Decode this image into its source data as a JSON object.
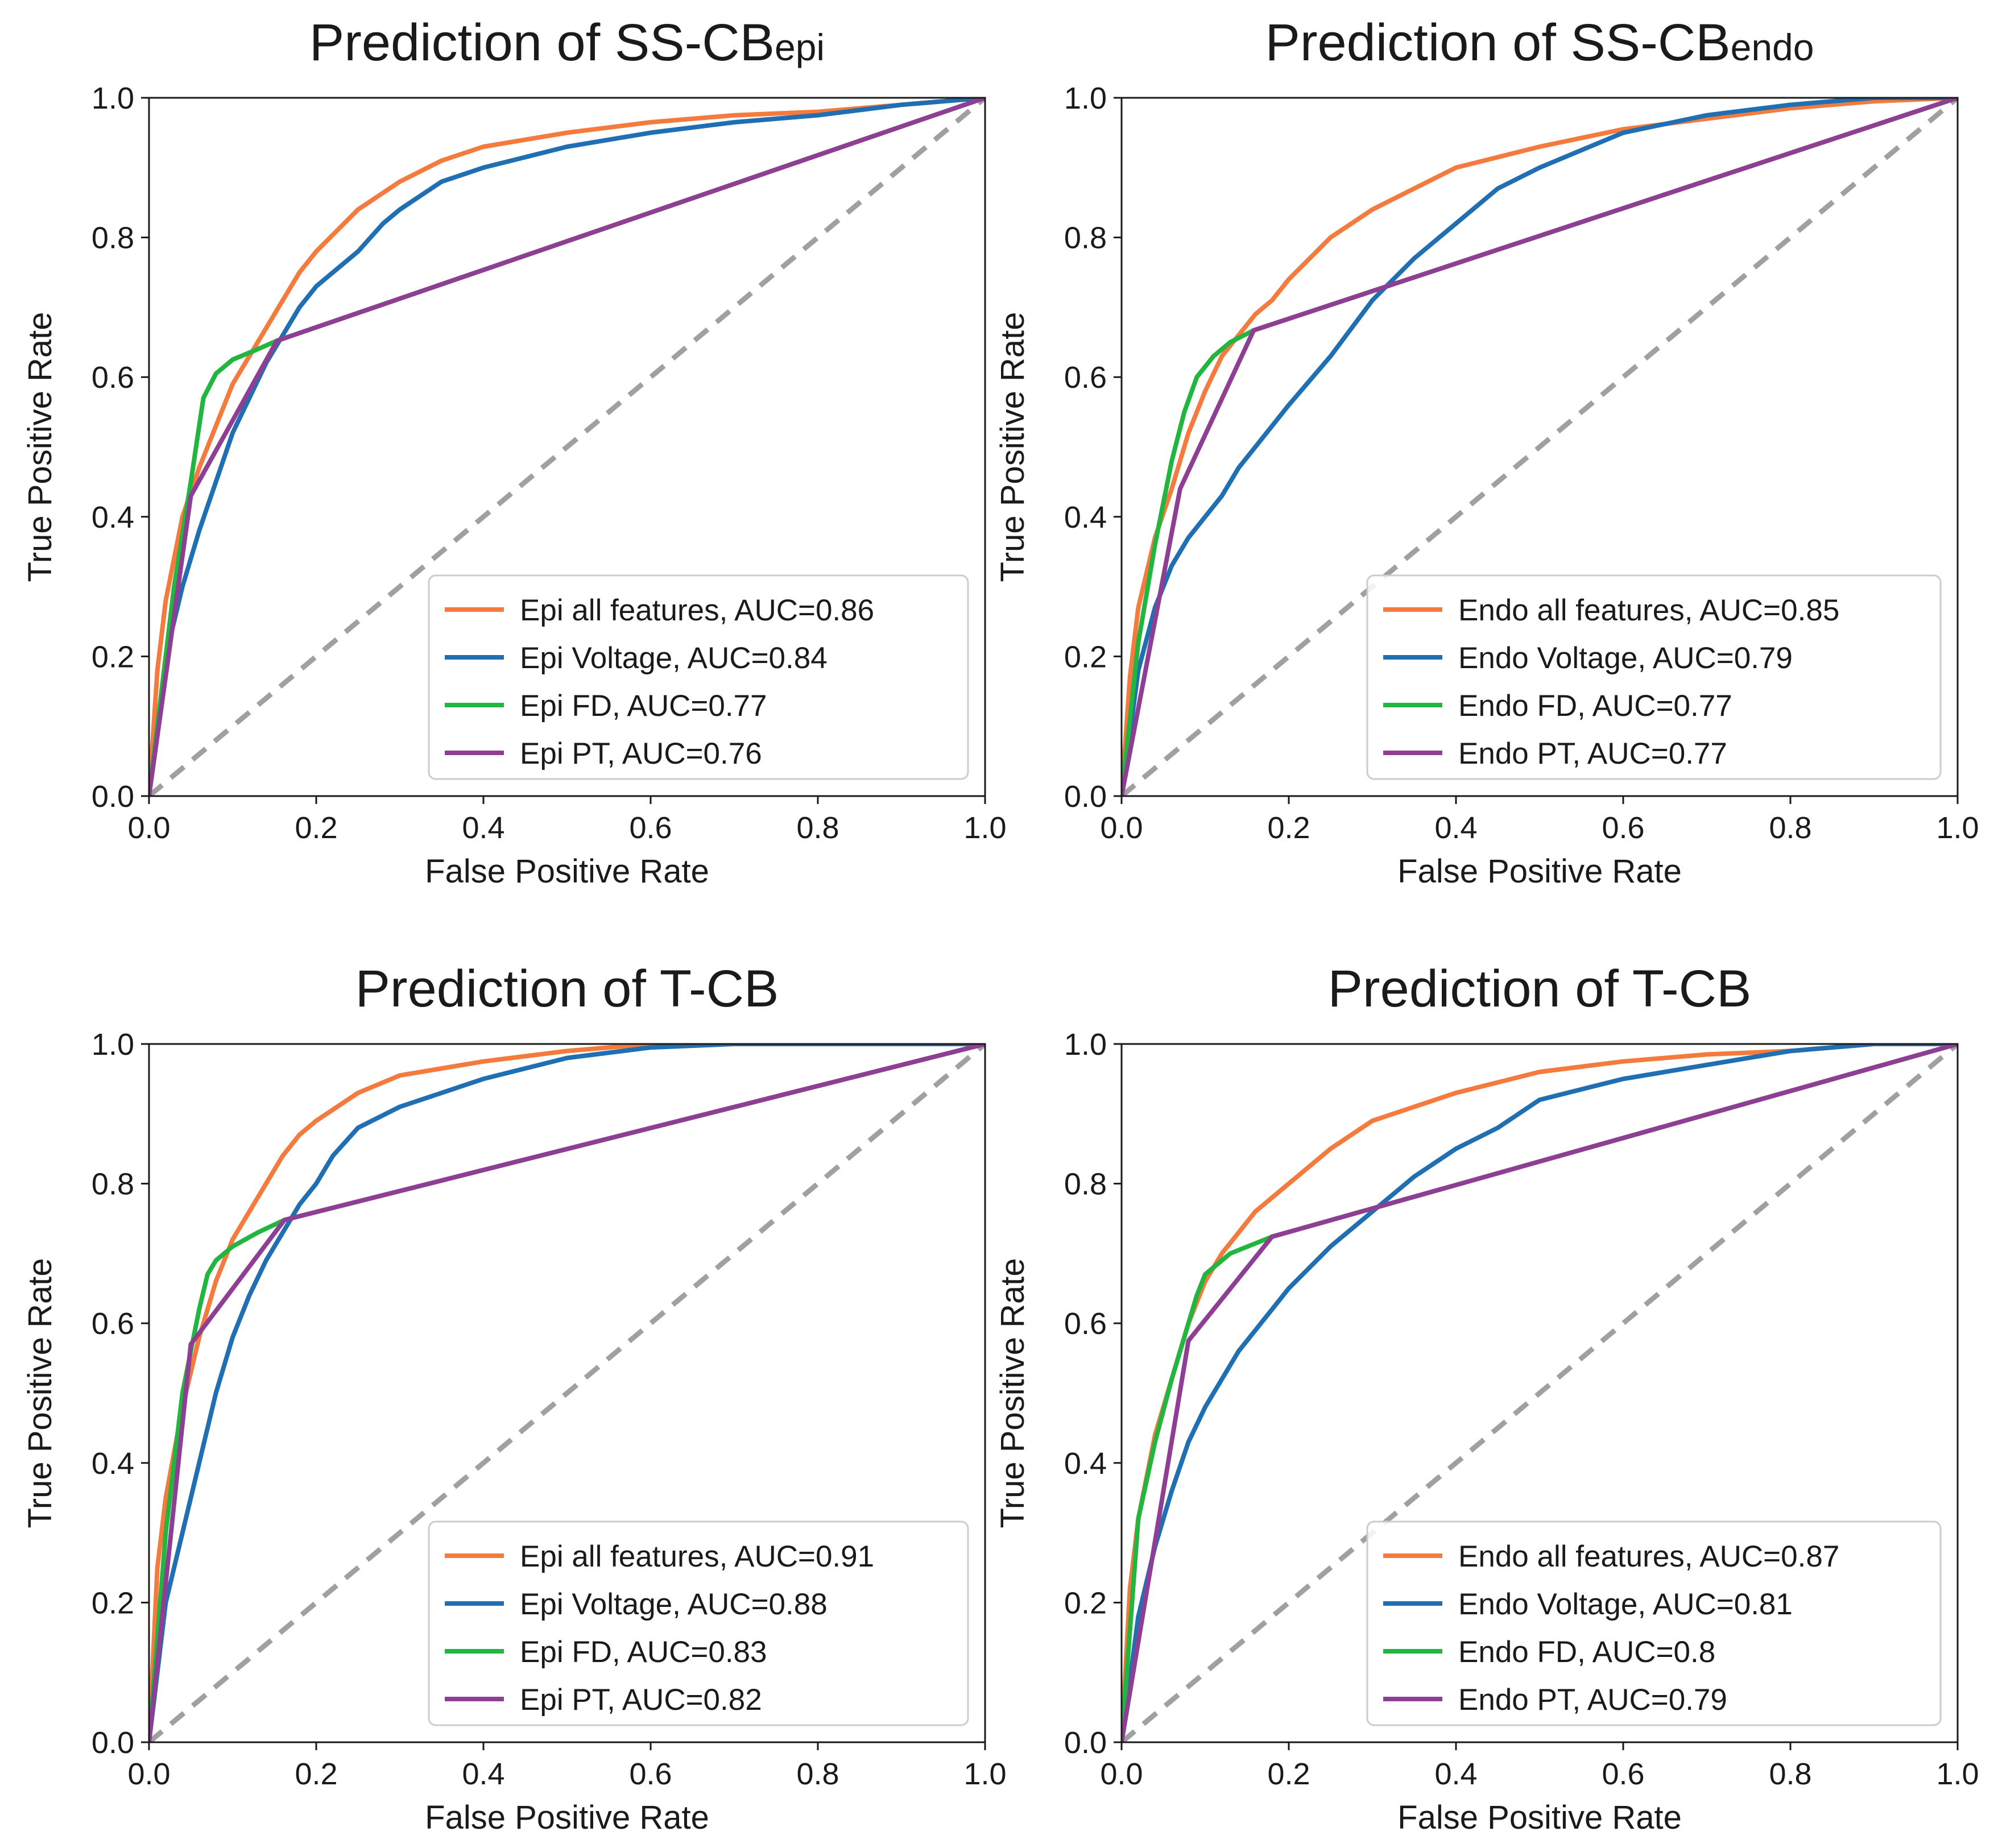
{
  "chart_data": [
    {
      "type": "line",
      "title": "Prediction of SS-CB",
      "title_sub": "epi",
      "xlabel": "False Positive Rate",
      "ylabel": "True Positive Rate",
      "xlim": [
        0,
        1
      ],
      "ylim": [
        0,
        1
      ],
      "xticks": [
        "0.0",
        "0.2",
        "0.4",
        "0.6",
        "0.8",
        "1.0"
      ],
      "yticks": [
        "0.0",
        "0.2",
        "0.4",
        "0.6",
        "0.8",
        "1.0"
      ],
      "grid": false,
      "legend_position": "lower-right",
      "diagonal": {
        "x": [
          0,
          1
        ],
        "y": [
          0,
          1
        ],
        "color": "#a0a0a0",
        "style": "dashed"
      },
      "series": [
        {
          "name": "Epi all features, AUC=0.86",
          "color": "#f47a3e",
          "x": [
            0,
            0.01,
            0.02,
            0.04,
            0.06,
            0.08,
            0.1,
            0.12,
            0.14,
            0.16,
            0.18,
            0.2,
            0.25,
            0.3,
            0.35,
            0.4,
            0.5,
            0.6,
            0.7,
            0.8,
            0.9,
            1.0
          ],
          "y": [
            0,
            0.18,
            0.28,
            0.4,
            0.47,
            0.53,
            0.59,
            0.63,
            0.67,
            0.71,
            0.75,
            0.78,
            0.84,
            0.88,
            0.91,
            0.93,
            0.95,
            0.965,
            0.975,
            0.98,
            0.99,
            1.0
          ]
        },
        {
          "name": "Epi Voltage, AUC=0.84",
          "color": "#1f6fb2",
          "x": [
            0,
            0.02,
            0.04,
            0.06,
            0.08,
            0.1,
            0.12,
            0.14,
            0.16,
            0.18,
            0.2,
            0.22,
            0.25,
            0.28,
            0.3,
            0.35,
            0.4,
            0.5,
            0.6,
            0.7,
            0.8,
            0.9,
            1.0
          ],
          "y": [
            0,
            0.2,
            0.3,
            0.38,
            0.45,
            0.52,
            0.57,
            0.62,
            0.66,
            0.7,
            0.73,
            0.75,
            0.78,
            0.82,
            0.84,
            0.88,
            0.9,
            0.93,
            0.95,
            0.965,
            0.975,
            0.99,
            1.0
          ]
        },
        {
          "name": "Epi FD, AUC=0.77",
          "color": "#22b53f",
          "x": [
            0,
            0.03,
            0.05,
            0.06,
            0.065,
            0.08,
            0.1,
            0.13,
            0.153,
            1.0
          ],
          "y": [
            0,
            0.3,
            0.45,
            0.53,
            0.57,
            0.605,
            0.625,
            0.64,
            0.652,
            1.0
          ]
        },
        {
          "name": "Epi PT, AUC=0.76",
          "color": "#8e3e93",
          "x": [
            0,
            0.05,
            0.153,
            1.0
          ],
          "y": [
            0,
            0.43,
            0.652,
            1.0
          ]
        }
      ]
    },
    {
      "type": "line",
      "title": "Prediction of SS-CB",
      "title_sub": "endo",
      "xlabel": "False Positive Rate",
      "ylabel": "True Positive Rate",
      "xlim": [
        0,
        1
      ],
      "ylim": [
        0,
        1
      ],
      "xticks": [
        "0.0",
        "0.2",
        "0.4",
        "0.6",
        "0.8",
        "1.0"
      ],
      "yticks": [
        "0.0",
        "0.2",
        "0.4",
        "0.6",
        "0.8",
        "1.0"
      ],
      "grid": false,
      "legend_position": "lower-right",
      "diagonal": {
        "x": [
          0,
          1
        ],
        "y": [
          0,
          1
        ],
        "color": "#a0a0a0",
        "style": "dashed"
      },
      "series": [
        {
          "name": "Endo all features, AUC=0.85",
          "color": "#f47a3e",
          "x": [
            0,
            0.01,
            0.02,
            0.04,
            0.06,
            0.08,
            0.1,
            0.12,
            0.14,
            0.16,
            0.18,
            0.2,
            0.25,
            0.3,
            0.35,
            0.4,
            0.5,
            0.6,
            0.7,
            0.8,
            0.9,
            1.0
          ],
          "y": [
            0,
            0.17,
            0.27,
            0.37,
            0.44,
            0.52,
            0.58,
            0.63,
            0.66,
            0.69,
            0.71,
            0.74,
            0.8,
            0.84,
            0.87,
            0.9,
            0.93,
            0.955,
            0.97,
            0.985,
            0.995,
            1.0
          ]
        },
        {
          "name": "Endo Voltage, AUC=0.79",
          "color": "#1f6fb2",
          "x": [
            0,
            0.02,
            0.04,
            0.06,
            0.08,
            0.1,
            0.12,
            0.14,
            0.16,
            0.2,
            0.25,
            0.3,
            0.35,
            0.4,
            0.45,
            0.5,
            0.6,
            0.7,
            0.8,
            0.9,
            1.0
          ],
          "y": [
            0,
            0.18,
            0.27,
            0.33,
            0.37,
            0.4,
            0.43,
            0.47,
            0.5,
            0.56,
            0.63,
            0.71,
            0.77,
            0.82,
            0.87,
            0.9,
            0.95,
            0.975,
            0.99,
            1.0,
            1.0
          ]
        },
        {
          "name": "Endo FD, AUC=0.77",
          "color": "#22b53f",
          "x": [
            0,
            0.02,
            0.04,
            0.06,
            0.075,
            0.09,
            0.11,
            0.13,
            0.158,
            1.0
          ],
          "y": [
            0,
            0.22,
            0.36,
            0.48,
            0.55,
            0.6,
            0.63,
            0.65,
            0.667,
            1.0
          ]
        },
        {
          "name": "Endo PT, AUC=0.77",
          "color": "#8e3e93",
          "x": [
            0,
            0.07,
            0.158,
            1.0
          ],
          "y": [
            0,
            0.44,
            0.667,
            1.0
          ]
        }
      ]
    },
    {
      "type": "line",
      "title": "Prediction of T-CB",
      "title_sub": "",
      "xlabel": "False Positive Rate",
      "ylabel": "True Positive Rate",
      "xlim": [
        0,
        1
      ],
      "ylim": [
        0,
        1
      ],
      "xticks": [
        "0.0",
        "0.2",
        "0.4",
        "0.6",
        "0.8",
        "1.0"
      ],
      "yticks": [
        "0.0",
        "0.2",
        "0.4",
        "0.6",
        "0.8",
        "1.0"
      ],
      "grid": false,
      "legend_position": "lower-right",
      "diagonal": {
        "x": [
          0,
          1
        ],
        "y": [
          0,
          1
        ],
        "color": "#a0a0a0",
        "style": "dashed"
      },
      "series": [
        {
          "name": "Epi all features, AUC=0.91",
          "color": "#f47a3e",
          "x": [
            0,
            0.01,
            0.02,
            0.04,
            0.06,
            0.08,
            0.1,
            0.12,
            0.14,
            0.16,
            0.18,
            0.2,
            0.25,
            0.3,
            0.35,
            0.4,
            0.5,
            0.6,
            0.7,
            0.8,
            0.9,
            1.0
          ],
          "y": [
            0,
            0.25,
            0.35,
            0.48,
            0.58,
            0.66,
            0.72,
            0.76,
            0.8,
            0.84,
            0.87,
            0.89,
            0.93,
            0.955,
            0.965,
            0.975,
            0.99,
            1.0,
            1.0,
            1.0,
            1.0,
            1.0
          ]
        },
        {
          "name": "Epi Voltage, AUC=0.88",
          "color": "#1f6fb2",
          "x": [
            0,
            0.02,
            0.04,
            0.06,
            0.08,
            0.1,
            0.12,
            0.14,
            0.16,
            0.18,
            0.2,
            0.22,
            0.25,
            0.3,
            0.35,
            0.4,
            0.5,
            0.6,
            0.7,
            0.8,
            0.9,
            1.0
          ],
          "y": [
            0,
            0.2,
            0.3,
            0.4,
            0.5,
            0.58,
            0.64,
            0.69,
            0.73,
            0.77,
            0.8,
            0.84,
            0.88,
            0.91,
            0.93,
            0.95,
            0.98,
            0.995,
            1.0,
            1.0,
            1.0,
            1.0
          ]
        },
        {
          "name": "Epi FD, AUC=0.83",
          "color": "#22b53f",
          "x": [
            0,
            0.02,
            0.04,
            0.06,
            0.07,
            0.08,
            0.1,
            0.13,
            0.162,
            1.0
          ],
          "y": [
            0,
            0.3,
            0.5,
            0.62,
            0.67,
            0.69,
            0.71,
            0.73,
            0.748,
            1.0
          ]
        },
        {
          "name": "Epi PT, AUC=0.82",
          "color": "#8e3e93",
          "x": [
            0,
            0.05,
            0.162,
            1.0
          ],
          "y": [
            0,
            0.57,
            0.748,
            1.0
          ]
        }
      ]
    },
    {
      "type": "line",
      "title": "Prediction of T-CB",
      "title_sub": "",
      "xlabel": "False Positive Rate",
      "ylabel": "True Positive Rate",
      "xlim": [
        0,
        1
      ],
      "ylim": [
        0,
        1
      ],
      "xticks": [
        "0.0",
        "0.2",
        "0.4",
        "0.6",
        "0.8",
        "1.0"
      ],
      "yticks": [
        "0.0",
        "0.2",
        "0.4",
        "0.6",
        "0.8",
        "1.0"
      ],
      "grid": false,
      "legend_position": "lower-right",
      "diagonal": {
        "x": [
          0,
          1
        ],
        "y": [
          0,
          1
        ],
        "color": "#a0a0a0",
        "style": "dashed"
      },
      "series": [
        {
          "name": "Endo all features, AUC=0.87",
          "color": "#f47a3e",
          "x": [
            0,
            0.01,
            0.02,
            0.04,
            0.06,
            0.08,
            0.1,
            0.12,
            0.14,
            0.16,
            0.18,
            0.2,
            0.25,
            0.3,
            0.35,
            0.4,
            0.5,
            0.6,
            0.7,
            0.8,
            0.9,
            1.0
          ],
          "y": [
            0,
            0.22,
            0.32,
            0.44,
            0.52,
            0.6,
            0.66,
            0.7,
            0.73,
            0.76,
            0.78,
            0.8,
            0.85,
            0.89,
            0.91,
            0.93,
            0.96,
            0.975,
            0.985,
            0.99,
            1.0,
            1.0
          ]
        },
        {
          "name": "Endo Voltage, AUC=0.81",
          "color": "#1f6fb2",
          "x": [
            0,
            0.02,
            0.04,
            0.06,
            0.08,
            0.1,
            0.12,
            0.14,
            0.16,
            0.2,
            0.25,
            0.3,
            0.35,
            0.4,
            0.45,
            0.5,
            0.6,
            0.7,
            0.8,
            0.9,
            1.0
          ],
          "y": [
            0,
            0.18,
            0.28,
            0.36,
            0.43,
            0.48,
            0.52,
            0.56,
            0.59,
            0.65,
            0.71,
            0.76,
            0.81,
            0.85,
            0.88,
            0.92,
            0.95,
            0.97,
            0.99,
            1.0,
            1.0
          ]
        },
        {
          "name": "Endo FD, AUC=0.8",
          "color": "#22b53f",
          "x": [
            0,
            0.02,
            0.04,
            0.06,
            0.08,
            0.09,
            0.1,
            0.13,
            0.18,
            1.0
          ],
          "y": [
            0,
            0.32,
            0.43,
            0.52,
            0.6,
            0.64,
            0.67,
            0.7,
            0.724,
            1.0
          ]
        },
        {
          "name": "Endo PT, AUC=0.79",
          "color": "#8e3e93",
          "x": [
            0,
            0.08,
            0.18,
            1.0
          ],
          "y": [
            0,
            0.575,
            0.724,
            1.0
          ]
        }
      ]
    }
  ]
}
